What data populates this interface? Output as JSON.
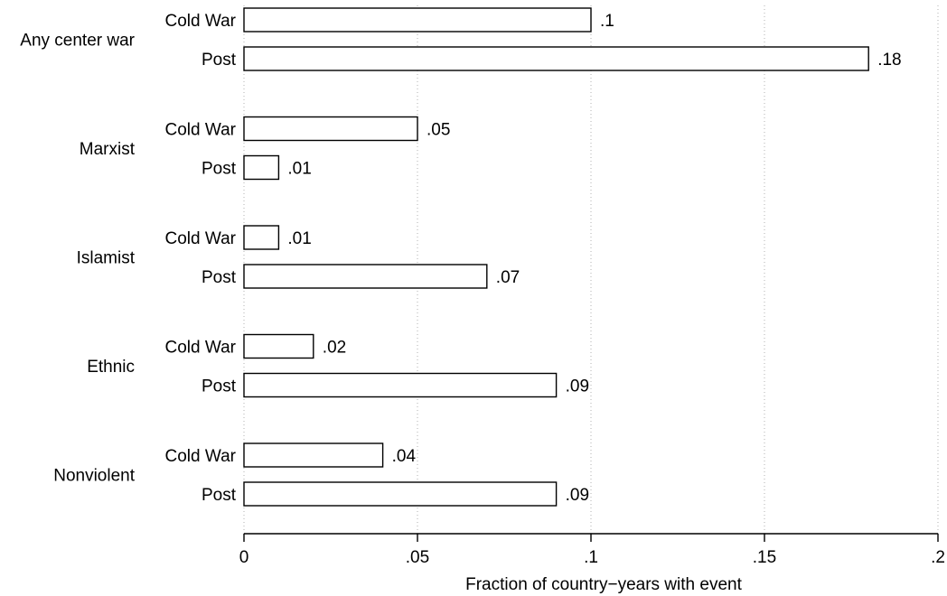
{
  "chart_data": {
    "type": "bar",
    "orientation": "horizontal",
    "xlabel": "Fraction of country−years with event",
    "xlim": [
      0,
      0.2
    ],
    "xticks": [
      {
        "value": 0,
        "label": "0"
      },
      {
        "value": 0.05,
        "label": ".05"
      },
      {
        "value": 0.1,
        "label": ".1"
      },
      {
        "value": 0.15,
        "label": ".15"
      },
      {
        "value": 0.2,
        "label": ".2"
      }
    ],
    "grid": true,
    "groups": [
      {
        "name": "Any center war",
        "bars": [
          {
            "label": "Cold War",
            "value": 0.1,
            "value_label": ".1"
          },
          {
            "label": "Post",
            "value": 0.18,
            "value_label": ".18"
          }
        ]
      },
      {
        "name": "Marxist",
        "bars": [
          {
            "label": "Cold War",
            "value": 0.05,
            "value_label": ".05"
          },
          {
            "label": "Post",
            "value": 0.01,
            "value_label": ".01"
          }
        ]
      },
      {
        "name": "Islamist",
        "bars": [
          {
            "label": "Cold War",
            "value": 0.01,
            "value_label": ".01"
          },
          {
            "label": "Post",
            "value": 0.07,
            "value_label": ".07"
          }
        ]
      },
      {
        "name": "Ethnic",
        "bars": [
          {
            "label": "Cold War",
            "value": 0.02,
            "value_label": ".02"
          },
          {
            "label": "Post",
            "value": 0.09,
            "value_label": ".09"
          }
        ]
      },
      {
        "name": "Nonviolent",
        "bars": [
          {
            "label": "Cold War",
            "value": 0.04,
            "value_label": ".04"
          },
          {
            "label": "Post",
            "value": 0.09,
            "value_label": ".09"
          }
        ]
      }
    ]
  }
}
